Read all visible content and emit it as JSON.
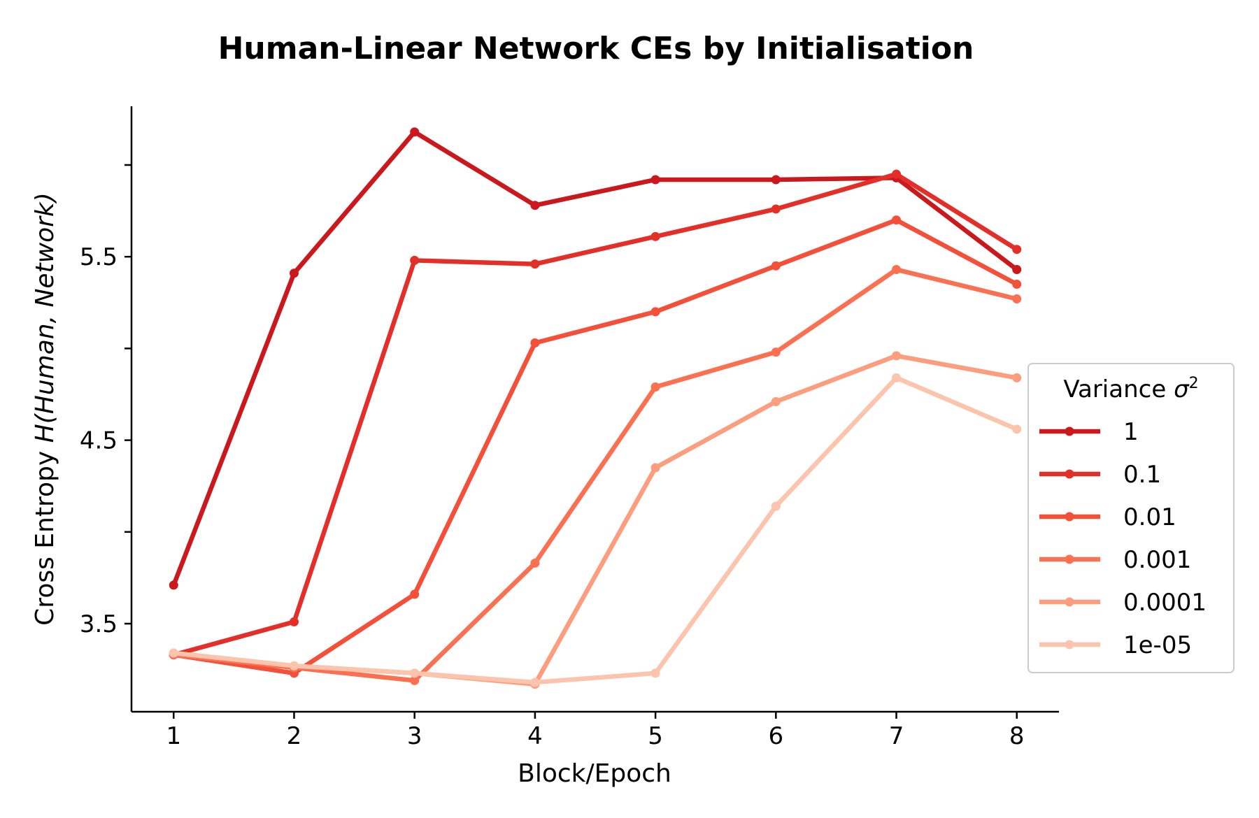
{
  "chart_data": {
    "type": "line",
    "title": "Human-Linear Network CEs by Initialisation",
    "xlabel": "Block/Epoch",
    "ylabel_prefix": "Cross Entropy ",
    "ylabel_italic": "H(Human, Network)",
    "x": [
      1,
      2,
      3,
      4,
      5,
      6,
      7,
      8
    ],
    "xlim": [
      0.65,
      8.35
    ],
    "ylim": [
      3.02,
      6.32
    ],
    "yticks_labeled": [
      3.5,
      4.5,
      5.5
    ],
    "yticks_minor": [
      4.0,
      5.0,
      6.0
    ],
    "grid": false,
    "legend": {
      "title_text": "Variance ",
      "title_symbol": "σ",
      "title_sup": "2",
      "placement": "right"
    },
    "series": [
      {
        "name": "1",
        "color": "#cb181d",
        "values": [
          3.71,
          5.41,
          6.18,
          5.78,
          5.92,
          5.92,
          5.93,
          5.43
        ]
      },
      {
        "name": "0.1",
        "color": "#e32f27",
        "values": [
          3.33,
          3.51,
          5.48,
          5.46,
          5.61,
          5.76,
          5.95,
          5.54
        ]
      },
      {
        "name": "0.01",
        "color": "#f44f39",
        "values": [
          3.33,
          3.23,
          3.66,
          5.03,
          5.2,
          5.45,
          5.7,
          5.35
        ]
      },
      {
        "name": "0.001",
        "color": "#fb7050",
        "values": [
          3.33,
          3.26,
          3.19,
          3.83,
          4.79,
          4.98,
          5.43,
          5.27
        ]
      },
      {
        "name": "0.0001",
        "color": "#fc9e7e",
        "values": [
          3.34,
          3.27,
          3.23,
          3.17,
          4.35,
          4.71,
          4.96,
          4.84
        ]
      },
      {
        "name": "1e-05",
        "color": "#fcc4ad",
        "values": [
          3.34,
          3.27,
          3.23,
          3.18,
          3.23,
          4.14,
          4.84,
          4.56
        ]
      }
    ]
  }
}
